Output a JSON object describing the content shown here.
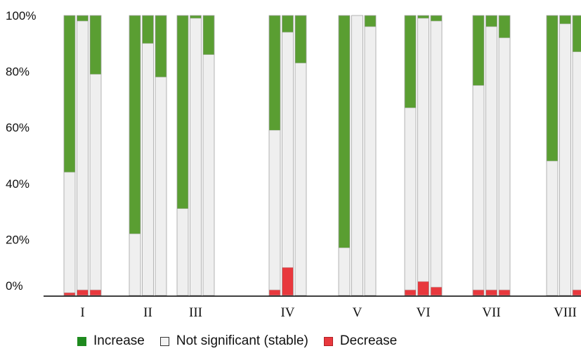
{
  "chart_data": {
    "type": "bar",
    "stacked": true,
    "percent": true,
    "categories": [
      "I",
      "II",
      "III",
      "IV",
      "V",
      "VI",
      "VII",
      "VIII"
    ],
    "bars_per_category": 3,
    "ylim": [
      0,
      100
    ],
    "yticks": [
      "0%",
      "20%",
      "40%",
      "60%",
      "80%",
      "100%"
    ],
    "series": [
      {
        "name": "Decrease",
        "color": "#e8383d",
        "values": [
          [
            1,
            2,
            2
          ],
          [
            0,
            0,
            0
          ],
          [
            0,
            0,
            0
          ],
          [
            2,
            10,
            0
          ],
          [
            0,
            0,
            0
          ],
          [
            2,
            5,
            3
          ],
          [
            2,
            2,
            2
          ],
          [
            0,
            0,
            2
          ]
        ]
      },
      {
        "name": "Not significant (stable)",
        "color": "#efefef",
        "values": [
          [
            43,
            96,
            77
          ],
          [
            22,
            90,
            78
          ],
          [
            31,
            99,
            86
          ],
          [
            57,
            84,
            83
          ],
          [
            17,
            100,
            96
          ],
          [
            65,
            94,
            95
          ],
          [
            73,
            94,
            90
          ],
          [
            48,
            97,
            85
          ]
        ]
      },
      {
        "name": "Increase",
        "color": "#5a9e32",
        "values": [
          [
            56,
            2,
            21
          ],
          [
            78,
            10,
            22
          ],
          [
            69,
            1,
            14
          ],
          [
            41,
            6,
            17
          ],
          [
            83,
            0,
            4
          ],
          [
            33,
            1,
            2
          ],
          [
            25,
            4,
            8
          ],
          [
            52,
            3,
            13
          ]
        ]
      }
    ],
    "legend_position": "bottom",
    "legend": [
      {
        "label": "Increase",
        "color": "#1e8a1e",
        "border": "#1e8a1e"
      },
      {
        "label": "Not significant (stable)",
        "color": "#f3f3f3",
        "border": "#333333"
      },
      {
        "label": "Decrease",
        "color": "#e8383d",
        "border": "#b02025"
      }
    ]
  }
}
